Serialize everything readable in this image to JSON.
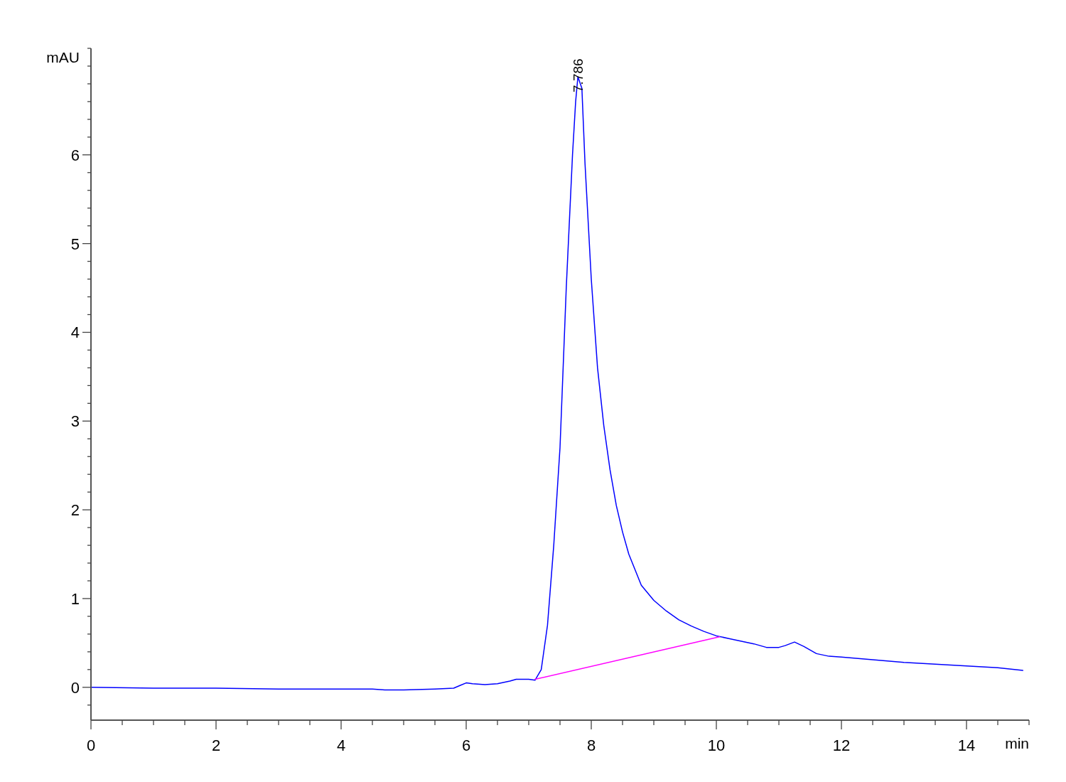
{
  "chart_data": {
    "type": "line",
    "xlabel": "min",
    "ylabel": "mAU",
    "xlim": [
      0,
      15
    ],
    "ylim": [
      -0.37,
      7.2
    ],
    "xticks": [
      0,
      {
        "value": 0.5,
        "label": null
      },
      {
        "value": 1,
        "label": null
      },
      {
        "value": 1.5,
        "label": null
      },
      2,
      {
        "value": 2.5,
        "label": null
      },
      {
        "value": 3,
        "label": null
      },
      {
        "value": 3.5,
        "label": null
      },
      4,
      {
        "value": 4.5,
        "label": null
      },
      {
        "value": 5,
        "label": null
      },
      {
        "value": 5.5,
        "label": null
      },
      6,
      {
        "value": 6.5,
        "label": null
      },
      {
        "value": 7,
        "label": null
      },
      {
        "value": 7.5,
        "label": null
      },
      8,
      {
        "value": 8.5,
        "label": null
      },
      {
        "value": 9,
        "label": null
      },
      {
        "value": 9.5,
        "label": null
      },
      10,
      {
        "value": 10.5,
        "label": null
      },
      {
        "value": 11,
        "label": null
      },
      {
        "value": 11.5,
        "label": null
      },
      12,
      {
        "value": 12.5,
        "label": null
      },
      {
        "value": 13,
        "label": null
      },
      {
        "value": 13.5,
        "label": null
      },
      14,
      {
        "value": 14.5,
        "label": null
      },
      {
        "value": 15,
        "label": null
      }
    ],
    "yticks": [
      {
        "value": -0.2,
        "label": null
      },
      0,
      {
        "value": 0.2,
        "label": null
      },
      {
        "value": 0.4,
        "label": null
      },
      {
        "value": 0.6,
        "label": null
      },
      {
        "value": 0.8,
        "label": null
      },
      1,
      {
        "value": 1.2,
        "label": null
      },
      {
        "value": 1.4,
        "label": null
      },
      {
        "value": 1.6,
        "label": null
      },
      {
        "value": 1.8,
        "label": null
      },
      2,
      {
        "value": 2.2,
        "label": null
      },
      {
        "value": 2.4,
        "label": null
      },
      {
        "value": 2.6,
        "label": null
      },
      {
        "value": 2.8,
        "label": null
      },
      3,
      {
        "value": 3.2,
        "label": null
      },
      {
        "value": 3.4,
        "label": null
      },
      {
        "value": 3.6,
        "label": null
      },
      {
        "value": 3.8,
        "label": null
      },
      4,
      {
        "value": 4.2,
        "label": null
      },
      {
        "value": 4.4,
        "label": null
      },
      {
        "value": 4.6,
        "label": null
      },
      {
        "value": 4.8,
        "label": null
      },
      5,
      {
        "value": 5.2,
        "label": null
      },
      {
        "value": 5.4,
        "label": null
      },
      {
        "value": 5.6,
        "label": null
      },
      {
        "value": 5.8,
        "label": null
      },
      6,
      {
        "value": 6.2,
        "label": null
      },
      {
        "value": 6.4,
        "label": null
      },
      {
        "value": 6.6,
        "label": null
      },
      {
        "value": 6.8,
        "label": null
      },
      {
        "value": 7,
        "label": null
      },
      {
        "value": 7.2,
        "label": null
      }
    ],
    "grid": false,
    "annotations": [
      {
        "text": "7.786",
        "x": 7.786,
        "y": 6.88
      }
    ],
    "series": [
      {
        "color": "#0000ff",
        "x": [
          0,
          1,
          2,
          3,
          4,
          4.5,
          4.7,
          5,
          5.5,
          5.8,
          5.9,
          6,
          6.1,
          6.3,
          6.5,
          6.7,
          6.8,
          7,
          7.1,
          7.2,
          7.3,
          7.4,
          7.5,
          7.6,
          7.7,
          7.75,
          7.786,
          7.85,
          7.9,
          8,
          8.1,
          8.2,
          8.3,
          8.4,
          8.5,
          8.6,
          8.8,
          9,
          9.2,
          9.4,
          9.6,
          9.8,
          10,
          10.2,
          10.4,
          10.6,
          10.8,
          11,
          11.1,
          11.25,
          11.4,
          11.6,
          11.8,
          12,
          12.5,
          13,
          13.5,
          14,
          14.5,
          14.9
        ],
        "values": [
          0,
          -0.01,
          -0.01,
          -0.02,
          -0.02,
          -0.02,
          -0.03,
          -0.03,
          -0.02,
          -0.01,
          0.02,
          0.05,
          0.04,
          0.03,
          0.04,
          0.07,
          0.09,
          0.09,
          0.08,
          0.2,
          0.7,
          1.6,
          2.7,
          4.5,
          6,
          6.6,
          6.88,
          6.75,
          5.9,
          4.6,
          3.6,
          2.95,
          2.45,
          2.05,
          1.75,
          1.5,
          1.15,
          0.98,
          0.86,
          0.76,
          0.69,
          0.63,
          0.58,
          0.55,
          0.52,
          0.49,
          0.45,
          0.45,
          0.47,
          0.51,
          0.46,
          0.38,
          0.35,
          0.34,
          0.31,
          0.28,
          0.26,
          0.24,
          0.22,
          0.19
        ]
      },
      {
        "color": "#ff00ff",
        "x": [
          7.1,
          10.05
        ],
        "values": [
          0.09,
          0.57
        ]
      }
    ]
  }
}
